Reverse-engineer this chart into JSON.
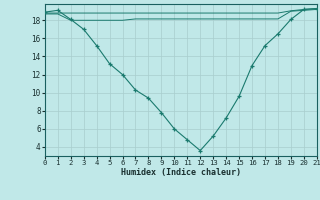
{
  "xlabel": "Humidex (Indice chaleur)",
  "x": [
    0,
    1,
    2,
    3,
    4,
    5,
    6,
    7,
    8,
    9,
    10,
    11,
    12,
    13,
    14,
    15,
    16,
    17,
    18,
    19,
    20,
    21
  ],
  "line1": [
    18.9,
    19.1,
    18.1,
    17.0,
    15.2,
    13.2,
    12.0,
    10.3,
    9.4,
    7.8,
    6.0,
    4.8,
    3.6,
    5.2,
    7.2,
    9.6,
    13.0,
    15.2,
    16.5,
    18.1,
    19.2,
    19.3
  ],
  "line2": [
    18.7,
    18.7,
    18.0,
    18.0,
    18.0,
    18.0,
    18.0,
    18.15,
    18.15,
    18.15,
    18.15,
    18.15,
    18.15,
    18.15,
    18.15,
    18.15,
    18.15,
    18.15,
    18.15,
    19.0,
    19.1,
    19.2
  ],
  "line3": [
    18.8,
    18.8,
    18.8,
    18.8,
    18.8,
    18.8,
    18.8,
    18.8,
    18.8,
    18.8,
    18.8,
    18.8,
    18.8,
    18.8,
    18.8,
    18.8,
    18.8,
    18.8,
    18.8,
    19.05,
    19.2,
    19.3
  ],
  "line_color": "#1a7a6e",
  "bg_color": "#c0e8e8",
  "grid_color": "#a8cece",
  "ylim": [
    3.0,
    19.8
  ],
  "yticks": [
    4,
    6,
    8,
    10,
    12,
    14,
    16,
    18
  ],
  "xlim": [
    0,
    21
  ]
}
